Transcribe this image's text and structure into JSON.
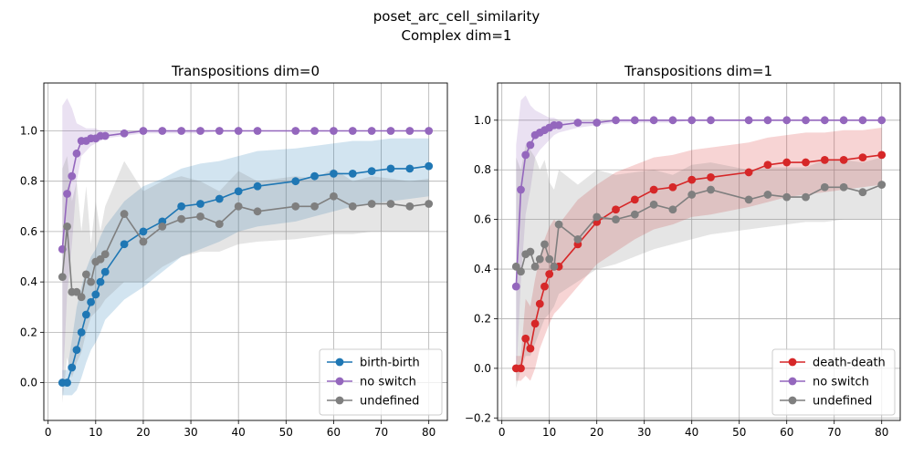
{
  "figure": {
    "suptitle_line1": "poset_arc_cell_similarity",
    "suptitle_line2": "Complex dim=1"
  },
  "chart_data": [
    {
      "type": "line",
      "title": "Transpositions dim=0",
      "xlabel": "",
      "ylabel": "",
      "xlim": [
        -0.9,
        83.9
      ],
      "ylim": [
        -0.15,
        1.19
      ],
      "xticks": [
        0,
        10,
        20,
        30,
        40,
        50,
        60,
        70,
        80
      ],
      "yticks": [
        0.0,
        0.2,
        0.4,
        0.6,
        0.8,
        1.0
      ],
      "ytick_labels": [
        "0.0",
        "0.2",
        "0.4",
        "0.6",
        "0.8",
        "1.0"
      ],
      "grid": true,
      "legend": "lower right",
      "x": [
        3,
        4,
        5,
        6,
        7,
        8,
        9,
        10,
        11,
        12,
        16,
        20,
        24,
        28,
        32,
        36,
        40,
        44,
        52,
        56,
        60,
        64,
        68,
        72,
        76,
        80
      ],
      "series": [
        {
          "name": "birth-birth",
          "color": "#1f77b4",
          "values": [
            0.0,
            0.0,
            0.06,
            0.13,
            0.2,
            0.27,
            0.32,
            0.35,
            0.4,
            0.44,
            0.55,
            0.6,
            0.64,
            0.7,
            0.71,
            0.73,
            0.76,
            0.78,
            0.8,
            0.82,
            0.83,
            0.83,
            0.84,
            0.85,
            0.85,
            0.86
          ],
          "lower": [
            -0.05,
            -0.05,
            -0.05,
            -0.03,
            0.02,
            0.08,
            0.13,
            0.16,
            0.2,
            0.25,
            0.33,
            0.38,
            0.44,
            0.5,
            0.53,
            0.56,
            0.6,
            0.62,
            0.64,
            0.66,
            0.68,
            0.7,
            0.71,
            0.72,
            0.73,
            0.74
          ],
          "upper": [
            0.05,
            0.05,
            0.17,
            0.3,
            0.38,
            0.45,
            0.5,
            0.53,
            0.58,
            0.62,
            0.72,
            0.78,
            0.81,
            0.85,
            0.87,
            0.88,
            0.9,
            0.92,
            0.93,
            0.94,
            0.95,
            0.96,
            0.96,
            0.97,
            0.97,
            0.97
          ]
        },
        {
          "name": "no switch",
          "color": "#9467bd",
          "values": [
            0.53,
            0.75,
            0.82,
            0.91,
            0.96,
            0.96,
            0.97,
            0.97,
            0.98,
            0.98,
            0.99,
            1.0,
            1.0,
            1.0,
            1.0,
            1.0,
            1.0,
            1.0,
            1.0,
            1.0,
            1.0,
            1.0,
            1.0,
            1.0,
            1.0,
            1.0
          ],
          "lower": [
            -0.05,
            0.35,
            0.55,
            0.8,
            0.9,
            0.92,
            0.94,
            0.95,
            0.96,
            0.97,
            0.98,
            0.99,
            0.99,
            0.99,
            0.99,
            1.0,
            1.0,
            1.0,
            1.0,
            1.0,
            1.0,
            1.0,
            1.0,
            1.0,
            1.0,
            1.0
          ],
          "upper": [
            1.1,
            1.13,
            1.09,
            1.03,
            1.02,
            1.01,
            1.01,
            1.01,
            1.0,
            1.0,
            1.0,
            1.0,
            1.0,
            1.0,
            1.0,
            1.0,
            1.0,
            1.0,
            1.0,
            1.0,
            1.0,
            1.0,
            1.0,
            1.0,
            1.0,
            1.0
          ]
        },
        {
          "name": "undefined",
          "color": "#7f7f7f",
          "values": [
            0.42,
            0.62,
            0.36,
            0.36,
            0.34,
            0.43,
            0.4,
            0.48,
            0.49,
            0.51,
            0.67,
            0.56,
            0.62,
            0.65,
            0.66,
            0.63,
            0.7,
            0.68,
            0.7,
            0.7,
            0.74,
            0.7,
            0.71,
            0.71,
            0.7,
            0.71
          ],
          "lower": [
            -0.08,
            0.1,
            0.02,
            0.08,
            0.12,
            0.2,
            0.26,
            0.28,
            0.3,
            0.33,
            0.4,
            0.4,
            0.46,
            0.5,
            0.52,
            0.52,
            0.55,
            0.56,
            0.57,
            0.58,
            0.59,
            0.59,
            0.6,
            0.6,
            0.6,
            0.6
          ],
          "upper": [
            0.85,
            0.9,
            0.72,
            0.8,
            0.6,
            0.78,
            0.55,
            0.72,
            0.6,
            0.7,
            0.88,
            0.76,
            0.8,
            0.82,
            0.8,
            0.76,
            0.84,
            0.8,
            0.82,
            0.81,
            0.85,
            0.8,
            0.82,
            0.81,
            0.8,
            0.81
          ]
        }
      ]
    },
    {
      "type": "line",
      "title": "Transpositions dim=1",
      "xlabel": "",
      "ylabel": "",
      "xlim": [
        -0.9,
        83.9
      ],
      "ylim": [
        -0.21,
        1.15
      ],
      "xticks": [
        0,
        10,
        20,
        30,
        40,
        50,
        60,
        70,
        80
      ],
      "yticks": [
        -0.2,
        0.0,
        0.2,
        0.4,
        0.6,
        0.8,
        1.0
      ],
      "ytick_labels": [
        "−0.2",
        "0.0",
        "0.2",
        "0.4",
        "0.6",
        "0.8",
        "1.0"
      ],
      "grid": true,
      "legend": "lower right",
      "x": [
        3,
        4,
        5,
        6,
        7,
        8,
        9,
        10,
        11,
        12,
        16,
        20,
        24,
        28,
        32,
        36,
        40,
        44,
        52,
        56,
        60,
        64,
        68,
        72,
        76,
        80
      ],
      "series": [
        {
          "name": "death-death",
          "color": "#d62728",
          "values": [
            0.0,
            0.0,
            0.12,
            0.08,
            0.18,
            0.26,
            0.33,
            0.38,
            0.41,
            0.41,
            0.5,
            0.59,
            0.64,
            0.68,
            0.72,
            0.73,
            0.76,
            0.77,
            0.79,
            0.82,
            0.83,
            0.83,
            0.84,
            0.84,
            0.85,
            0.86
          ],
          "lower": [
            -0.05,
            -0.05,
            -0.03,
            -0.05,
            0.0,
            0.08,
            0.13,
            0.18,
            0.22,
            0.24,
            0.33,
            0.42,
            0.47,
            0.52,
            0.56,
            0.58,
            0.61,
            0.62,
            0.65,
            0.67,
            0.69,
            0.7,
            0.71,
            0.72,
            0.73,
            0.74
          ],
          "upper": [
            0.05,
            0.05,
            0.28,
            0.25,
            0.36,
            0.45,
            0.52,
            0.57,
            0.6,
            0.58,
            0.68,
            0.74,
            0.79,
            0.82,
            0.85,
            0.86,
            0.88,
            0.89,
            0.91,
            0.93,
            0.94,
            0.95,
            0.95,
            0.96,
            0.96,
            0.97
          ]
        },
        {
          "name": "no switch",
          "color": "#9467bd",
          "values": [
            0.33,
            0.72,
            0.86,
            0.9,
            0.94,
            0.95,
            0.96,
            0.97,
            0.98,
            0.98,
            0.99,
            0.99,
            1.0,
            1.0,
            1.0,
            1.0,
            1.0,
            1.0,
            1.0,
            1.0,
            1.0,
            1.0,
            1.0,
            1.0,
            1.0,
            1.0
          ],
          "lower": [
            -0.05,
            0.35,
            0.62,
            0.72,
            0.85,
            0.88,
            0.9,
            0.92,
            0.94,
            0.95,
            0.97,
            0.98,
            0.99,
            0.99,
            0.99,
            0.99,
            1.0,
            1.0,
            1.0,
            1.0,
            1.0,
            1.0,
            1.0,
            1.0,
            1.0,
            1.0
          ],
          "upper": [
            0.9,
            1.08,
            1.1,
            1.06,
            1.04,
            1.03,
            1.02,
            1.01,
            1.01,
            1.0,
            1.0,
            1.0,
            1.0,
            1.0,
            1.0,
            1.0,
            1.0,
            1.0,
            1.0,
            1.0,
            1.0,
            1.0,
            1.0,
            1.0,
            1.0,
            1.0
          ]
        },
        {
          "name": "undefined",
          "color": "#7f7f7f",
          "values": [
            0.41,
            0.39,
            0.46,
            0.47,
            0.41,
            0.44,
            0.5,
            0.44,
            0.41,
            0.58,
            0.52,
            0.61,
            0.6,
            0.62,
            0.66,
            0.64,
            0.7,
            0.72,
            0.68,
            0.7,
            0.69,
            0.69,
            0.73,
            0.73,
            0.71,
            0.74
          ],
          "lower": [
            -0.08,
            0.0,
            0.05,
            0.05,
            0.1,
            0.15,
            0.2,
            0.22,
            0.25,
            0.3,
            0.35,
            0.4,
            0.42,
            0.45,
            0.48,
            0.5,
            0.52,
            0.54,
            0.56,
            0.57,
            0.58,
            0.59,
            0.59,
            0.6,
            0.6,
            0.6
          ],
          "upper": [
            0.85,
            0.8,
            0.9,
            0.88,
            0.85,
            0.8,
            0.84,
            0.75,
            0.72,
            0.8,
            0.74,
            0.8,
            0.78,
            0.79,
            0.8,
            0.78,
            0.82,
            0.83,
            0.8,
            0.81,
            0.81,
            0.81,
            0.84,
            0.84,
            0.83,
            0.85
          ]
        }
      ]
    }
  ]
}
